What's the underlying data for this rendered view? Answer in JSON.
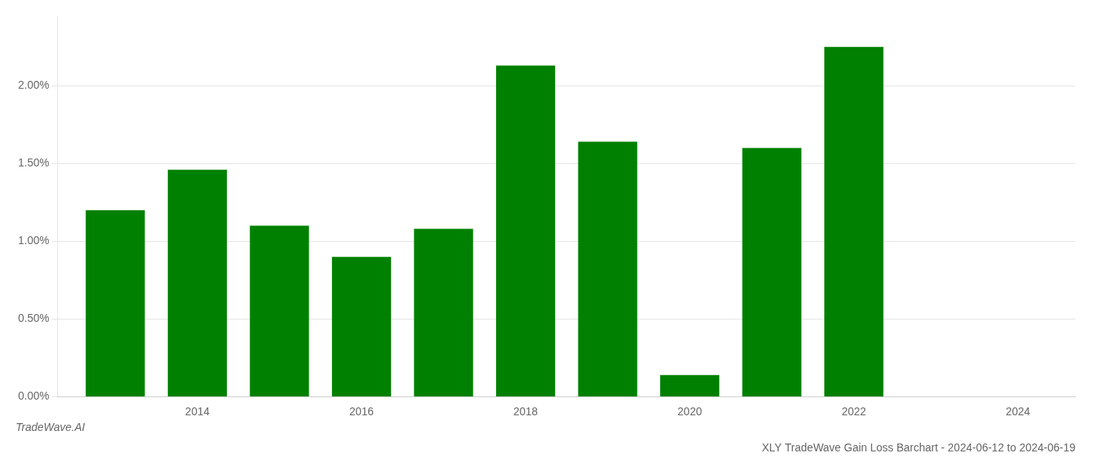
{
  "chart_data": {
    "type": "bar",
    "title": "XLY TradeWave Gain Loss Barchart - 2024-06-12 to 2024-06-19",
    "annotations": [
      "TradeWave.AI"
    ],
    "x": [
      2013,
      2014,
      2015,
      2016,
      2017,
      2018,
      2019,
      2020,
      2021,
      2022
    ],
    "values": [
      0.012,
      0.0146,
      0.011,
      0.009,
      0.0108,
      0.0213,
      0.0164,
      0.0014,
      0.016,
      0.0225
    ],
    "color": "#008000",
    "xlim": [
      2012.3,
      2024.7
    ],
    "xticks": [
      2014,
      2016,
      2018,
      2020,
      2022,
      2024
    ],
    "ylim": [
      0,
      0.0245
    ],
    "yticks": [
      {
        "value": 0.0,
        "label": "0.00%"
      },
      {
        "value": 0.005,
        "label": "0.50%"
      },
      {
        "value": 0.01,
        "label": "1.00%"
      },
      {
        "value": 0.015,
        "label": "1.50%"
      },
      {
        "value": 0.02,
        "label": "2.00%"
      }
    ],
    "grid": "y"
  }
}
